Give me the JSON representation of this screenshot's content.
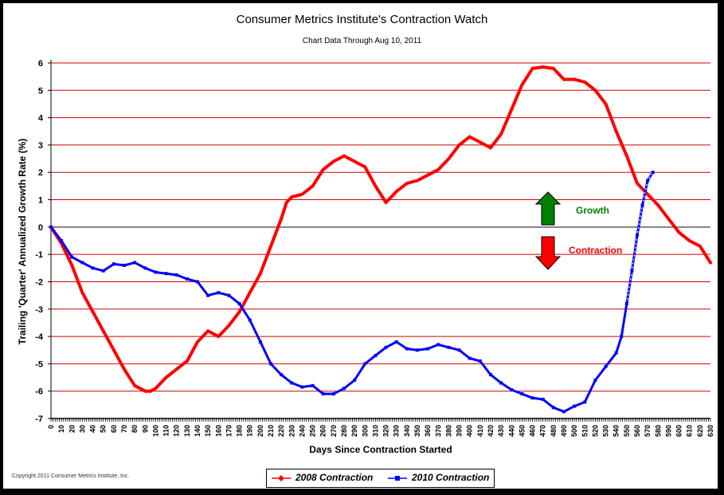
{
  "chart_data": {
    "type": "line",
    "title": "Consumer Metrics Institute's Contraction Watch",
    "subtitle": "Chart Data Through Aug 10, 2011",
    "xlabel": "Days Since Contraction Started",
    "ylabel": "Trailing 'Quarter' Annualized Growth Rate (%)",
    "xlim": [
      0,
      630
    ],
    "ylim": [
      -7,
      6
    ],
    "x_ticks": [
      0,
      10,
      20,
      30,
      40,
      50,
      60,
      70,
      80,
      90,
      100,
      110,
      120,
      130,
      140,
      150,
      160,
      170,
      180,
      190,
      200,
      210,
      220,
      230,
      240,
      250,
      260,
      270,
      280,
      290,
      300,
      310,
      320,
      330,
      340,
      350,
      360,
      370,
      380,
      390,
      400,
      410,
      420,
      430,
      440,
      450,
      460,
      470,
      480,
      490,
      500,
      510,
      520,
      530,
      540,
      550,
      560,
      570,
      580,
      590,
      600,
      610,
      620,
      630
    ],
    "y_ticks": [
      6,
      5,
      4,
      3,
      2,
      1,
      0,
      -1,
      -2,
      -3,
      -4,
      -5,
      -6,
      -7
    ],
    "grid": true,
    "zero_line_color": "#808080",
    "series": [
      {
        "name": "2008 Contraction",
        "color": "#ff0000",
        "x": [
          0,
          10,
          20,
          30,
          40,
          50,
          60,
          70,
          80,
          90,
          95,
          100,
          110,
          120,
          130,
          140,
          150,
          160,
          170,
          180,
          190,
          200,
          210,
          220,
          225,
          230,
          240,
          250,
          260,
          270,
          280,
          290,
          300,
          310,
          320,
          330,
          340,
          350,
          360,
          370,
          380,
          390,
          400,
          410,
          420,
          430,
          440,
          450,
          460,
          470,
          480,
          490,
          500,
          510,
          520,
          530,
          540,
          550,
          560,
          570,
          580,
          590,
          600,
          610,
          620,
          630
        ],
        "y": [
          0,
          -0.6,
          -1.4,
          -2.4,
          -3.1,
          -3.8,
          -4.5,
          -5.2,
          -5.8,
          -6.0,
          -6.0,
          -5.9,
          -5.5,
          -5.2,
          -4.9,
          -4.2,
          -3.8,
          -4.0,
          -3.6,
          -3.1,
          -2.4,
          -1.7,
          -0.7,
          0.3,
          0.9,
          1.1,
          1.2,
          1.5,
          2.1,
          2.4,
          2.6,
          2.4,
          2.2,
          1.5,
          0.9,
          1.3,
          1.6,
          1.7,
          1.9,
          2.1,
          2.5,
          3.0,
          3.3,
          3.1,
          2.9,
          3.4,
          4.3,
          5.2,
          5.8,
          5.85,
          5.8,
          5.4,
          5.4,
          5.3,
          5.0,
          4.5,
          3.5,
          2.6,
          1.6,
          1.2,
          0.8,
          0.3,
          -0.2,
          -0.5,
          -0.7,
          -1.3
        ]
      },
      {
        "name": "2010 Contraction",
        "color": "#0000ff",
        "x": [
          0,
          10,
          20,
          30,
          40,
          50,
          60,
          70,
          80,
          90,
          100,
          110,
          120,
          130,
          140,
          150,
          160,
          170,
          180,
          190,
          200,
          210,
          220,
          230,
          240,
          250,
          260,
          270,
          280,
          290,
          300,
          310,
          320,
          330,
          340,
          350,
          360,
          370,
          380,
          390,
          400,
          410,
          420,
          430,
          440,
          450,
          460,
          470,
          480,
          490,
          500,
          510,
          520,
          530,
          540,
          545,
          550,
          555,
          560,
          565,
          570,
          575
        ],
        "y": [
          0,
          -0.5,
          -1.1,
          -1.3,
          -1.5,
          -1.6,
          -1.35,
          -1.4,
          -1.3,
          -1.5,
          -1.65,
          -1.7,
          -1.75,
          -1.9,
          -2.0,
          -2.5,
          -2.4,
          -2.5,
          -2.8,
          -3.4,
          -4.2,
          -5.0,
          -5.4,
          -5.7,
          -5.85,
          -5.8,
          -6.1,
          -6.1,
          -5.9,
          -5.6,
          -5.0,
          -4.7,
          -4.4,
          -4.2,
          -4.45,
          -4.5,
          -4.45,
          -4.3,
          -4.4,
          -4.5,
          -4.8,
          -4.9,
          -5.4,
          -5.7,
          -5.95,
          -6.1,
          -6.25,
          -6.3,
          -6.6,
          -6.75,
          -6.55,
          -6.4,
          -5.6,
          -5.1,
          -4.6,
          -4.0,
          -2.8,
          -1.6,
          -0.3,
          0.8,
          1.7,
          2.0
        ]
      }
    ],
    "annotations": {
      "growth_label": "Growth",
      "growth_color": "#008000",
      "contraction_label": "Contraction",
      "contraction_color": "#ff0000"
    }
  },
  "legend": {
    "entry_2008": "2008 Contraction",
    "entry_2010": "2010 Contraction"
  },
  "copyright": "Copyright 2011 Consumer Metrics Institute, Inc."
}
